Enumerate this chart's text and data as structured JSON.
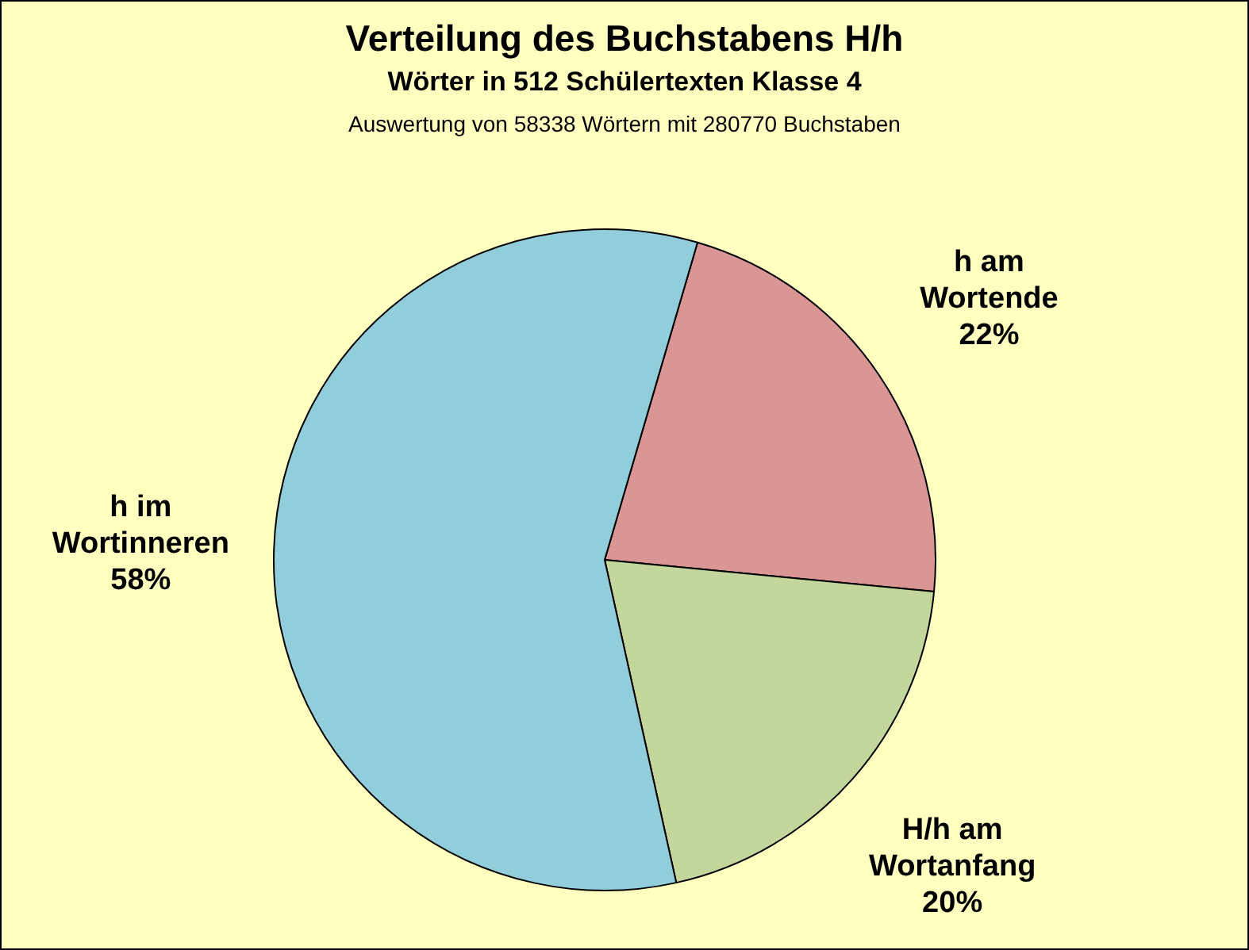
{
  "chart_data": {
    "type": "pie",
    "title": "Verteilung des Buchstabens H/h",
    "subtitle": "Wörter in 512 Schülertexten Klasse 4",
    "annotations": [
      "Auswertung von 58338 Wörtern mit 280770 Buchstaben"
    ],
    "categories": [
      "h am Wortende",
      "H/h am Wortanfang",
      "h im Wortinneren"
    ],
    "values": [
      22,
      20,
      58
    ],
    "colors": [
      "#d99694",
      "#c3d69b",
      "#92cddc"
    ],
    "value_labels": [
      "22%",
      "20%",
      "58%"
    ],
    "legend": false
  }
}
